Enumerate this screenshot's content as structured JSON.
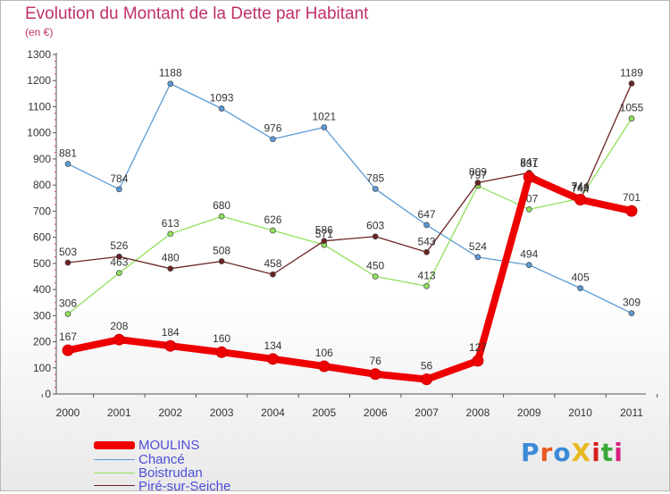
{
  "title": "Evolution du Montant de la Dette par Habitant",
  "subtitle": "(en €)",
  "logo": {
    "text": "ProXiti",
    "colors": [
      "#3a8ad8",
      "#e85a20",
      "#3a8ad8",
      "#e8b820",
      "#d82020",
      "#3aa83a",
      "#d82080"
    ]
  },
  "chart_data": {
    "type": "line",
    "categories": [
      "2000",
      "2001",
      "2002",
      "2003",
      "2004",
      "2005",
      "2006",
      "2007",
      "2008",
      "2009",
      "2010",
      "2011"
    ],
    "ylim": [
      0,
      1300
    ],
    "yticks": [
      "0",
      "100",
      "200",
      "300",
      "400",
      "500",
      "600",
      "700",
      "800",
      "900",
      "1000",
      "1100",
      "1200",
      "1300"
    ],
    "grid": false,
    "legend_position": "bottom",
    "series": [
      {
        "name": "Chancé",
        "color": "#5b9bd5",
        "values": [
          881,
          784,
          1188,
          1093,
          976,
          1021,
          785,
          647,
          524,
          494,
          405,
          309
        ]
      },
      {
        "name": "Boistrudan",
        "color": "#90e05a",
        "values": [
          306,
          463,
          613,
          680,
          626,
          571,
          450,
          413,
          797,
          707,
          749,
          1055
        ]
      },
      {
        "name": "Piré-sur-Seiche",
        "color": "#6b2222",
        "values": [
          503,
          526,
          480,
          508,
          458,
          586,
          603,
          543,
          809,
          847,
          744,
          1189
        ]
      },
      {
        "name": "MOULINS",
        "color": "#ee0000",
        "values": [
          167,
          208,
          184,
          160,
          134,
          106,
          76,
          56,
          127,
          831,
          744,
          701
        ]
      }
    ]
  }
}
